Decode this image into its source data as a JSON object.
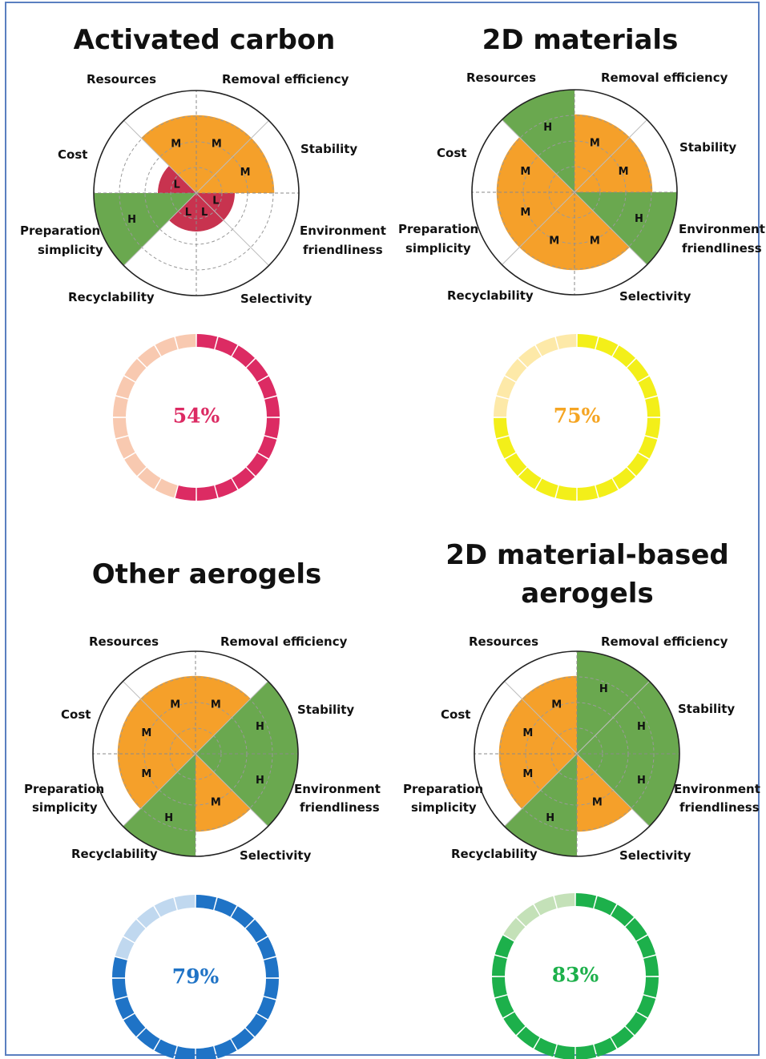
{
  "chart_data": [
    {
      "type": "radar",
      "title": "Activated carbon",
      "axes": [
        "Removal efficiency",
        "Stability",
        "Environment friendliness",
        "Selectivity",
        "Recyclability",
        "Preparation simplicity",
        "Cost",
        "Resources"
      ],
      "levels": [
        "M",
        "M",
        "L",
        "L",
        "L",
        "H",
        "L",
        "M"
      ],
      "score": "54%",
      "score_value": 54,
      "colors": {
        "score": "#dc2b63",
        "score_light": "#f8c9b0"
      }
    },
    {
      "type": "radar",
      "title": "2D materials",
      "axes": [
        "Removal efficiency",
        "Stability",
        "Environment friendliness",
        "Selectivity",
        "Recyclability",
        "Preparation simplicity",
        "Cost",
        "Resources"
      ],
      "levels": [
        "M",
        "M",
        "H",
        "M",
        "M",
        "M",
        "M",
        "H"
      ],
      "score": "75%",
      "score_value": 75,
      "colors": {
        "score": "#f3ef19",
        "score_light": "#fde9a8"
      }
    },
    {
      "type": "radar",
      "title": "Other aerogels",
      "axes": [
        "Removal efficiency",
        "Stability",
        "Environment friendliness",
        "Selectivity",
        "Recyclability",
        "Preparation simplicity",
        "Cost",
        "Resources"
      ],
      "levels": [
        "M",
        "H",
        "H",
        "M",
        "H",
        "M",
        "M",
        "M"
      ],
      "score": "79%",
      "score_value": 79,
      "colors": {
        "score": "#1f73c6",
        "score_light": "#c0d8ef"
      }
    },
    {
      "type": "radar",
      "title": "2D material-based aerogels",
      "axes": [
        "Removal efficiency",
        "Stability",
        "Environment friendliness",
        "Selectivity",
        "Recyclability",
        "Preparation simplicity",
        "Cost",
        "Resources"
      ],
      "levels": [
        "H",
        "H",
        "H",
        "M",
        "H",
        "M",
        "M",
        "M"
      ],
      "score": "83%",
      "score_value": 83,
      "colors": {
        "score": "#1db04b",
        "score_light": "#c4e1b8"
      }
    }
  ],
  "level_colors": {
    "H": "#6aa84f",
    "M": "#f5a02a",
    "L": "#c8334f"
  },
  "level_values": {
    "L": 1,
    "M": 2,
    "H": 3
  },
  "axis_labels": {
    "resources": "Resources",
    "removal": "Removal efficiency",
    "stability": "Stability",
    "env1": "Environment",
    "env2": "friendliness",
    "selectivity": "Selectivity",
    "recyclability": "Recyclability",
    "prep1": "Preparation",
    "prep2": "simplicity",
    "cost": "Cost"
  }
}
